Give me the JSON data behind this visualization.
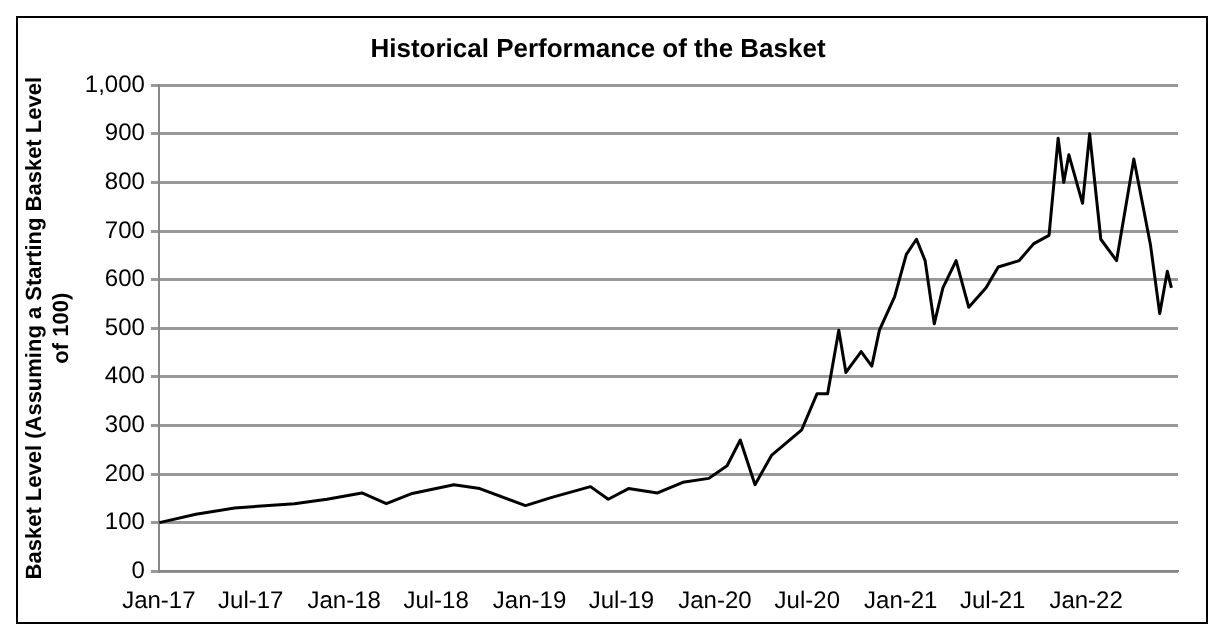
{
  "chart_data": {
    "type": "line",
    "title": "Historical Performance of the Basket",
    "ylabel": "Basket Level (Assuming a Starting Basket Level of 100)",
    "xlim": [
      "2017-01-01",
      "2022-07-01"
    ],
    "xticks": [
      {
        "value": "2017-01-01",
        "label": "Jan-17"
      },
      {
        "value": "2017-07-01",
        "label": "Jul-17"
      },
      {
        "value": "2018-01-01",
        "label": "Jan-18"
      },
      {
        "value": "2018-07-01",
        "label": "Jul-18"
      },
      {
        "value": "2019-01-01",
        "label": "Jan-19"
      },
      {
        "value": "2019-07-01",
        "label": "Jul-19"
      },
      {
        "value": "2020-01-01",
        "label": "Jan-20"
      },
      {
        "value": "2020-07-01",
        "label": "Jul-20"
      },
      {
        "value": "2021-01-01",
        "label": "Jan-21"
      },
      {
        "value": "2021-07-01",
        "label": "Jul-21"
      },
      {
        "value": "2022-01-01",
        "label": "Jan-22"
      }
    ],
    "ylim": [
      0,
      1000
    ],
    "yticks": [
      0,
      100,
      200,
      300,
      400,
      500,
      600,
      700,
      800,
      900,
      {
        "value": 1000,
        "label": "1,000"
      }
    ],
    "grid": "y",
    "marker": "none",
    "line_style": "solid",
    "series": [
      {
        "color": "#000000",
        "x": [
          "2017-01-02",
          "2017-03-15",
          "2017-05-30",
          "2017-09-25",
          "2017-11-28",
          "2018-02-05",
          "2018-03-25",
          "2018-05-15",
          "2018-08-05",
          "2018-09-25",
          "2018-12-24",
          "2019-02-14",
          "2019-05-01",
          "2019-06-05",
          "2019-07-15",
          "2019-09-10",
          "2019-10-30",
          "2019-12-20",
          "2020-01-25",
          "2020-02-20",
          "2020-03-20",
          "2020-04-22",
          "2020-06-20",
          "2020-07-20",
          "2020-08-10",
          "2020-09-01",
          "2020-09-15",
          "2020-10-15",
          "2020-11-05",
          "2020-11-20",
          "2020-12-20",
          "2021-01-12",
          "2021-02-01",
          "2021-02-18",
          "2021-03-08",
          "2021-03-25",
          "2021-04-20",
          "2021-05-15",
          "2021-06-18",
          "2021-07-12",
          "2021-08-22",
          "2021-09-20",
          "2021-10-20",
          "2021-11-07",
          "2021-11-18",
          "2021-11-28",
          "2021-12-25",
          "2022-01-08",
          "2022-01-30",
          "2022-03-02",
          "2022-04-05",
          "2022-04-22",
          "2022-05-08",
          "2022-05-26",
          "2022-06-10",
          "2022-06-18"
        ],
        "values": [
          100,
          117,
          130,
          139,
          148,
          161,
          139,
          160,
          178,
          170,
          135,
          152,
          174,
          148,
          170,
          161,
          183,
          191,
          217,
          270,
          178,
          239,
          291,
          365,
          365,
          496,
          409,
          452,
          422,
          496,
          565,
          652,
          683,
          639,
          509,
          583,
          639,
          543,
          583,
          626,
          639,
          674,
          691,
          891,
          800,
          857,
          757,
          900,
          683,
          639,
          848,
          757,
          670,
          530,
          617,
          583
        ]
      }
    ]
  }
}
